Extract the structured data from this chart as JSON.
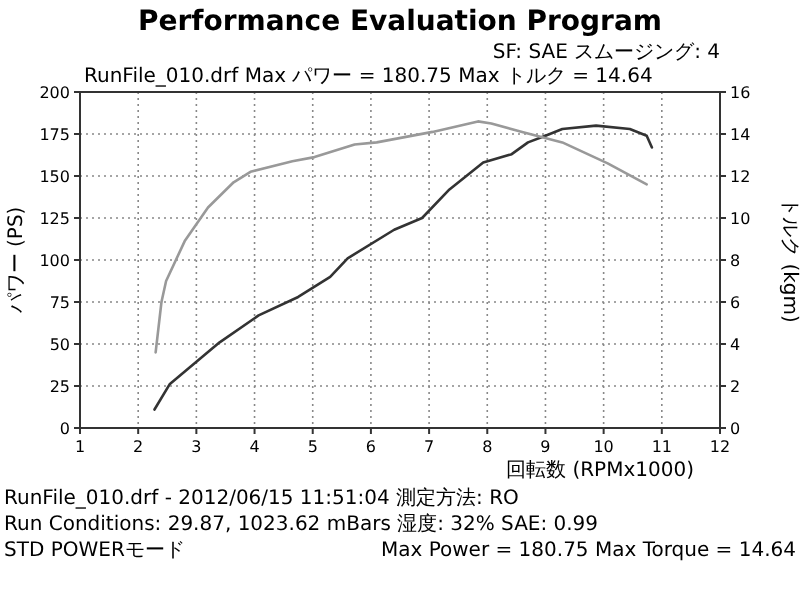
{
  "chart_data": {
    "type": "line",
    "title": "Performance Evaluation Program",
    "xlabel": "回転数 (RPMx1000)",
    "ylabel": "パワー (PS)",
    "y2label": "トルク (kgm)",
    "annotations": [
      "RunFile_010.drf  Max パワー = 180.75  Max トルク = 14.64",
      "SF: SAE  スムージング: 4",
      "RunFile_010.drf - 2012/06/15 11:51:04  測定方法: RO",
      "Run Conditions: 29.87, 1023.62 mBars  湿度: 32%  SAE: 0.99",
      "STD POWERモード",
      "Max Power = 180.75  Max Torque = 14.64"
    ],
    "xlim": [
      1,
      12
    ],
    "xticks": [
      1,
      2,
      3,
      4,
      5,
      6,
      7,
      8,
      9,
      10,
      11,
      12
    ],
    "ylim": [
      0,
      200
    ],
    "yticks": [
      0,
      25,
      50,
      75,
      100,
      125,
      150,
      175,
      200
    ],
    "y2lim": [
      0,
      16
    ],
    "y2ticks": [
      0,
      2,
      4,
      6,
      8,
      10,
      12,
      14,
      16
    ],
    "grid": true,
    "series": [
      {
        "color": "#333333",
        "x": [
          2.28,
          2.54,
          3.4,
          4.07,
          4.75,
          5.3,
          5.6,
          6.4,
          6.88,
          7.35,
          7.93,
          8.42,
          8.7,
          9.0,
          9.29,
          9.87,
          10.45,
          10.74,
          10.83
        ],
        "values": [
          11,
          26,
          51,
          67,
          78,
          90,
          101,
          118,
          125,
          142,
          158,
          163,
          170,
          174,
          178,
          180,
          178,
          174,
          167
        ]
      },
      {
        "color": "#999999",
        "axis": "y2",
        "x": [
          2.3,
          2.4,
          2.48,
          2.8,
          3.2,
          3.64,
          3.93,
          4.65,
          5.03,
          5.72,
          6.1,
          7.06,
          7.84,
          8.07,
          8.6,
          9.29,
          10.07,
          10.74
        ],
        "values": [
          3.6,
          6.0,
          7.0,
          8.9,
          10.5,
          11.7,
          12.2,
          12.7,
          12.9,
          13.5,
          13.6,
          14.1,
          14.6,
          14.5,
          14.1,
          13.6,
          12.6,
          11.6
        ]
      }
    ]
  }
}
